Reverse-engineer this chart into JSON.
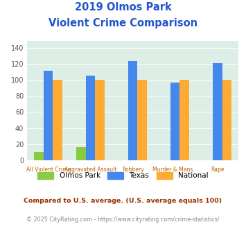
{
  "title_line1": "2019 Olmos Park",
  "title_line2": "Violent Crime Comparison",
  "cat_top": [
    "",
    "Aggravated Assault",
    "",
    "Murder & Mans...",
    ""
  ],
  "cat_bot": [
    "All Violent Crime",
    "",
    "Robbery",
    "",
    "Rape"
  ],
  "olmos_park": [
    10,
    16,
    0,
    0,
    0
  ],
  "texas": [
    111,
    105,
    123,
    97,
    121
  ],
  "national": [
    100,
    100,
    100,
    100,
    100
  ],
  "color_olmos": "#88cc44",
  "color_texas": "#4488ee",
  "color_national": "#ffaa33",
  "color_bg": "#ddeee6",
  "color_title": "#2255cc",
  "color_xtick": "#bb6600",
  "color_ytick": "#555555",
  "ylabel_ticks": [
    0,
    20,
    40,
    60,
    80,
    100,
    120,
    140
  ],
  "ylim": [
    0,
    148
  ],
  "footnote1": "Compared to U.S. average. (U.S. average equals 100)",
  "footnote2": "© 2025 CityRating.com - https://www.cityrating.com/crime-statistics/",
  "legend_labels": [
    "Olmos Park",
    "Texas",
    "National"
  ]
}
